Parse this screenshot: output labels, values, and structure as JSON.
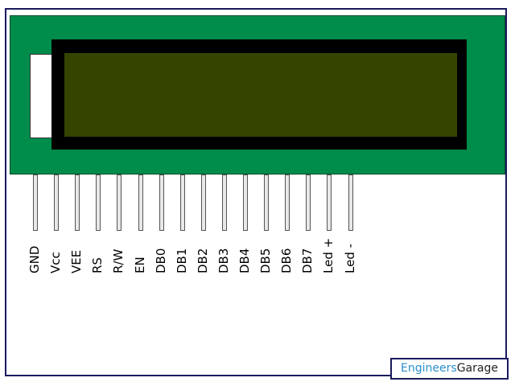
{
  "pins": [
    {
      "label": "GND"
    },
    {
      "label": "Vcc"
    },
    {
      "label": "VEE"
    },
    {
      "label": "RS"
    },
    {
      "label": "R/W"
    },
    {
      "label": "EN"
    },
    {
      "label": "DB0"
    },
    {
      "label": "DB1"
    },
    {
      "label": "DB2"
    },
    {
      "label": "DB3"
    },
    {
      "label": "DB4"
    },
    {
      "label": "DB5"
    },
    {
      "label": "DB6"
    },
    {
      "label": "DB7"
    },
    {
      "label": "Led +"
    },
    {
      "label": "Led -"
    }
  ],
  "logo": {
    "part1": "Engineers",
    "part2": "Garage"
  },
  "colors": {
    "pcb": "#008c4a",
    "bezel": "#000000",
    "screen": "#344500",
    "pin": "#e8e8e8",
    "logo_accent": "#2a8fd0"
  }
}
